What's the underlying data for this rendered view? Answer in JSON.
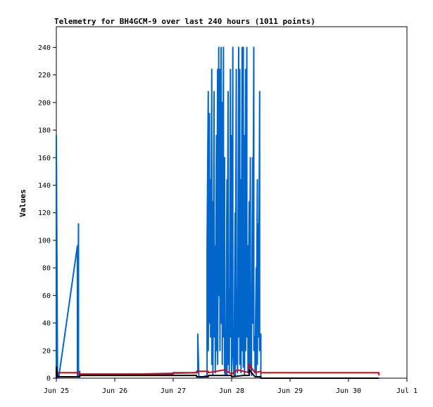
{
  "chart_data": {
    "type": "line",
    "title": "Telemetry for BH4GCM-9 over last 240 hours (1011 points)",
    "xlabel": "",
    "ylabel": "Values",
    "x_range_days": [
      0,
      6
    ],
    "ylim": [
      0,
      255
    ],
    "x_tick_labels": [
      "Jun 25",
      "Jun 26",
      "Jun 27",
      "Jun 28",
      "Jun 29",
      "Jun 30",
      "Jul 1"
    ],
    "x_ticks_days": [
      0,
      1,
      2,
      3,
      4,
      5,
      6
    ],
    "y_ticks": [
      0,
      20,
      40,
      60,
      80,
      100,
      120,
      140,
      160,
      180,
      200,
      220,
      240
    ],
    "grid": false,
    "colors": {
      "blue": "#0066cc",
      "red": "#e00000",
      "black": "#000000"
    },
    "series": [
      {
        "color": "blue",
        "x_days": [
          0.0,
          0.0,
          0.02,
          0.02,
          0.04,
          0.04,
          0.36,
          0.36,
          0.38,
          0.38,
          0.4,
          0.4,
          2.42,
          2.42,
          2.44,
          2.58,
          2.58,
          2.6,
          2.6,
          2.62,
          2.62,
          2.64,
          2.64,
          2.66,
          2.66,
          2.68,
          2.68,
          2.7,
          2.7,
          2.72,
          2.72,
          2.74,
          2.74,
          2.76,
          2.76,
          2.78,
          2.78,
          2.8,
          2.8,
          2.82,
          2.82,
          2.84,
          2.84,
          2.86,
          2.86,
          2.88,
          2.88,
          2.9,
          2.9,
          2.92,
          2.92,
          2.94,
          2.94,
          2.96,
          2.96,
          2.98,
          2.98,
          3.0,
          3.0,
          3.02,
          3.02,
          3.04,
          3.04,
          3.06,
          3.06,
          3.08,
          3.08,
          3.1,
          3.1,
          3.12,
          3.12,
          3.14,
          3.14,
          3.16,
          3.16,
          3.18,
          3.18,
          3.2,
          3.2,
          3.22,
          3.22,
          3.24,
          3.24,
          3.26,
          3.26,
          3.28,
          3.28,
          3.3,
          3.3,
          3.32,
          3.32,
          3.34,
          3.34,
          3.36,
          3.36,
          3.38,
          3.38,
          3.4,
          3.4,
          3.42,
          3.42,
          3.44,
          3.44,
          3.46,
          3.46,
          3.48,
          3.48,
          3.5,
          3.5,
          5.52
        ],
        "values": [
          0,
          176,
          2,
          0,
          4,
          0,
          96,
          2,
          112,
          0,
          5,
          2,
          4,
          32,
          0,
          2,
          96,
          208,
          20,
          192,
          40,
          144,
          30,
          224,
          10,
          128,
          2,
          208,
          30,
          96,
          4,
          176,
          20,
          224,
          10,
          240,
          60,
          224,
          20,
          240,
          40,
          200,
          10,
          240,
          30,
          160,
          4,
          2,
          8,
          144,
          2,
          208,
          10,
          64,
          4,
          224,
          30,
          176,
          4,
          240,
          20,
          2,
          6,
          120,
          2,
          224,
          10,
          64,
          4,
          240,
          30,
          224,
          10,
          144,
          4,
          240,
          20,
          240,
          8,
          176,
          2,
          224,
          20,
          240,
          30,
          96,
          4,
          128,
          2,
          160,
          10,
          2,
          30,
          160,
          40,
          240,
          20,
          30,
          4,
          80,
          2,
          144,
          10,
          112,
          30,
          208,
          20,
          32,
          0,
          0
        ]
      },
      {
        "color": "red",
        "x_days": [
          0.04,
          0.4,
          0.4,
          2.0,
          2.0,
          2.4,
          2.4,
          2.6,
          2.6,
          2.88,
          3.0,
          3.1,
          3.3,
          3.3,
          3.4,
          3.5,
          3.5,
          5.52,
          5.52
        ],
        "values": [
          4,
          4,
          3,
          3,
          4,
          4,
          5,
          5,
          4,
          6,
          3,
          6,
          4,
          10,
          4,
          5,
          4,
          4,
          2
        ]
      },
      {
        "color": "black",
        "x_days": [
          0.0,
          0.0,
          0.02,
          0.4,
          0.4,
          2.4,
          2.4,
          2.6,
          2.6,
          3.0,
          3.0,
          3.2,
          3.3,
          3.3,
          3.4,
          3.5,
          3.5,
          5.52
        ],
        "values": [
          0,
          8,
          1,
          1,
          2,
          2,
          1,
          1,
          2,
          2,
          1,
          2,
          2,
          6,
          1,
          1,
          0,
          0
        ]
      }
    ]
  }
}
